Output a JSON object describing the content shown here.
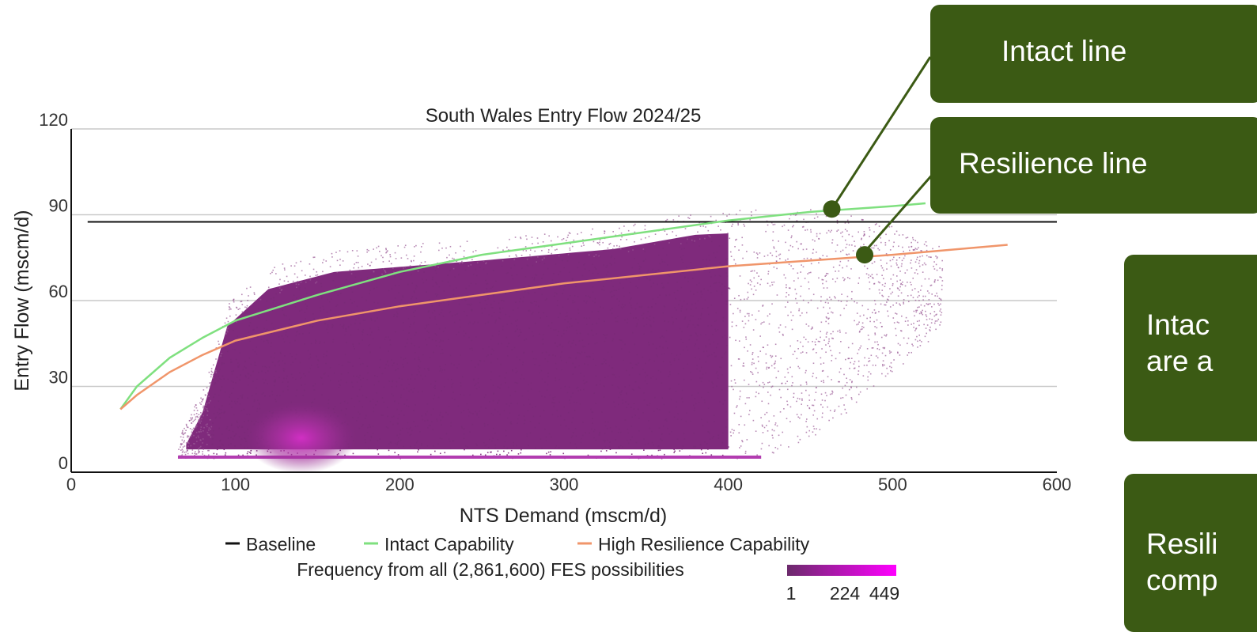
{
  "chart_data": {
    "type": "scatter",
    "title": "South Wales Entry Flow 2024/25",
    "xlabel": "NTS Demand (mscm/d)",
    "ylabel": "Entry Flow (mscm/d)",
    "xlim": [
      0,
      600
    ],
    "ylim": [
      0,
      120
    ],
    "xticks": [
      "0",
      "100",
      "200",
      "300",
      "400",
      "500",
      "600"
    ],
    "yticks": [
      "0",
      "30",
      "60",
      "90",
      "120"
    ],
    "grid": "horizontal",
    "legend_position": "bottom",
    "series": [
      {
        "name": "Baseline",
        "color": "#111111",
        "points": [
          [
            10,
            87.5
          ],
          [
            600,
            87.5
          ]
        ]
      },
      {
        "name": "Intact Capability",
        "color": "#7fe07f",
        "points": [
          [
            30,
            22
          ],
          [
            40,
            30
          ],
          [
            60,
            40
          ],
          [
            80,
            47
          ],
          [
            100,
            53
          ],
          [
            150,
            62
          ],
          [
            200,
            70
          ],
          [
            250,
            76
          ],
          [
            300,
            80
          ],
          [
            350,
            84
          ],
          [
            400,
            88
          ],
          [
            450,
            91
          ],
          [
            500,
            93
          ],
          [
            520,
            94
          ]
        ]
      },
      {
        "name": "High Resilience Capability",
        "color": "#f0956a",
        "points": [
          [
            30,
            22
          ],
          [
            40,
            27
          ],
          [
            60,
            35
          ],
          [
            80,
            41
          ],
          [
            100,
            46
          ],
          [
            150,
            53
          ],
          [
            200,
            58
          ],
          [
            250,
            62
          ],
          [
            300,
            66
          ],
          [
            350,
            69
          ],
          [
            400,
            72
          ],
          [
            450,
            74
          ],
          [
            500,
            76
          ],
          [
            550,
            78.5
          ],
          [
            570,
            79.5
          ]
        ]
      }
    ],
    "density": {
      "label": "Frequency from all (2,861,600) FES possibilities",
      "scale_ticks": [
        "1",
        "224",
        "449"
      ],
      "color_low": "#6b2a6b",
      "color_high": "#ff00ff",
      "peak_at": [
        140,
        12
      ]
    }
  },
  "callouts": {
    "intact_line": "Intact line",
    "resilience_line": "Resilience line",
    "intact_note_1": "Intac",
    "intact_note_2": "are a",
    "resilience_note_1": "Resili",
    "resilience_note_2": "comp"
  },
  "colors": {
    "callout_bg": "#3b5a14",
    "leader": "#3b5a14"
  }
}
